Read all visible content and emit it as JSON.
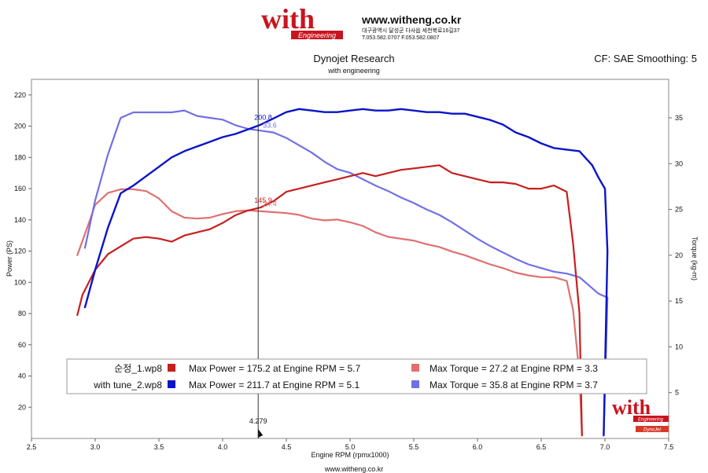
{
  "header": {
    "logo_text": "with",
    "logo_sub": "Engineering",
    "url": "www.witheng.co.kr",
    "address": "대구광역시 달성군 다사읍 세천북로16길37",
    "phone": "T.053.582.0707 F.053.582.0807"
  },
  "footer": {
    "url": "www.witheng.co.kr",
    "badge": "DynoJet"
  },
  "colors": {
    "power_stock": "#c81e1e",
    "power_tune": "#0a14c8",
    "torque_stock": "#e07070",
    "torque_tune": "#7070e6"
  },
  "chart_data": {
    "type": "line",
    "title": "Dynojet Research",
    "subtitle": "with engineering",
    "top_right": "CF: SAE Smoothing: 5",
    "xlabel": "Engine RPM (rpmx1000)",
    "ylabel": "Power (PS)",
    "y2label": "Torque (kg-m)",
    "xlim": [
      2.5,
      7.5
    ],
    "ylim": [
      0,
      230
    ],
    "y2lim": [
      0,
      39.2
    ],
    "x_ticks": [
      "2.5",
      "3.0",
      "3.5",
      "4.0",
      "4.5",
      "5.0",
      "5.5",
      "6.0",
      "6.5",
      "7.0",
      "7.5"
    ],
    "y_ticks": [
      "20",
      "40",
      "60",
      "80",
      "100",
      "120",
      "140",
      "160",
      "180",
      "200",
      "220"
    ],
    "y2_ticks": [
      "5",
      "10",
      "15",
      "20",
      "25",
      "30",
      "35"
    ],
    "cursor": {
      "x": 4.279,
      "label": "4.279"
    },
    "cursor_values": {
      "power_stock": "145.9",
      "torque_stock": "24.4",
      "power_tune": "200.8",
      "torque_tune": "33.6"
    },
    "legend": {
      "rows": [
        {
          "file": "순정_1.wp8",
          "power": "Max Power = 175.2 at Engine RPM = 5.7",
          "torque": "Max Torque = 27.2 at Engine RPM = 3.3"
        },
        {
          "file": "with tune_2.wp8",
          "power": "Max Power = 211.7 at Engine RPM = 5.1",
          "torque": "Max Torque = 35.8 at Engine RPM = 3.7"
        }
      ]
    },
    "series": [
      {
        "key": "power_stock",
        "axis": "left",
        "x": [
          2.86,
          2.9,
          3.0,
          3.1,
          3.2,
          3.3,
          3.4,
          3.5,
          3.6,
          3.7,
          3.8,
          3.9,
          4.0,
          4.1,
          4.2,
          4.3,
          4.4,
          4.5,
          4.6,
          4.7,
          4.8,
          4.9,
          5.0,
          5.1,
          5.2,
          5.3,
          5.4,
          5.5,
          5.6,
          5.7,
          5.8,
          5.9,
          6.0,
          6.1,
          6.2,
          6.3,
          6.4,
          6.5,
          6.6,
          6.7,
          6.75,
          6.8,
          6.82
        ],
        "y": [
          79,
          92,
          108,
          118,
          123,
          128,
          129,
          128,
          126,
          130,
          132,
          134,
          138,
          143,
          146,
          148,
          152,
          158,
          160,
          162,
          164,
          166,
          168,
          170,
          168,
          170,
          172,
          173,
          174,
          175,
          170,
          168,
          166,
          164,
          164,
          163,
          160,
          160,
          162,
          158,
          125,
          80,
          2
        ]
      },
      {
        "key": "power_tune",
        "axis": "left",
        "x": [
          2.92,
          3.0,
          3.1,
          3.2,
          3.3,
          3.4,
          3.5,
          3.6,
          3.7,
          3.8,
          3.9,
          4.0,
          4.1,
          4.2,
          4.3,
          4.4,
          4.5,
          4.6,
          4.7,
          4.8,
          4.9,
          5.0,
          5.1,
          5.2,
          5.3,
          5.4,
          5.5,
          5.6,
          5.7,
          5.8,
          5.9,
          6.0,
          6.1,
          6.2,
          6.3,
          6.4,
          6.5,
          6.6,
          6.7,
          6.8,
          6.9,
          6.95,
          7.0,
          7.02,
          6.99
        ],
        "y": [
          84,
          108,
          135,
          157,
          162,
          168,
          174,
          180,
          184,
          187,
          190,
          193,
          195,
          198,
          201,
          205,
          209,
          211,
          210,
          209,
          209,
          210,
          211,
          210,
          210,
          211,
          210,
          209,
          209,
          208,
          208,
          206,
          204,
          201,
          196,
          193,
          189,
          186,
          185,
          184,
          175,
          167,
          160,
          120,
          2
        ]
      },
      {
        "key": "torque_stock",
        "axis": "right",
        "x": [
          2.86,
          2.95,
          3.0,
          3.1,
          3.2,
          3.3,
          3.4,
          3.5,
          3.6,
          3.7,
          3.8,
          3.9,
          4.0,
          4.1,
          4.2,
          4.3,
          4.4,
          4.5,
          4.6,
          4.7,
          4.8,
          4.9,
          5.0,
          5.1,
          5.2,
          5.3,
          5.4,
          5.5,
          5.6,
          5.7,
          5.8,
          5.9,
          6.0,
          6.1,
          6.2,
          6.3,
          6.4,
          6.5,
          6.6,
          6.7,
          6.75,
          6.8,
          6.82
        ],
        "y": [
          20.0,
          23.5,
          25.5,
          26.8,
          27.2,
          27.2,
          27.0,
          26.2,
          24.8,
          24.1,
          24.0,
          24.1,
          24.5,
          24.8,
          24.9,
          24.8,
          24.7,
          24.6,
          24.4,
          24.0,
          23.8,
          23.9,
          23.6,
          23.2,
          22.5,
          22.0,
          21.8,
          21.6,
          21.2,
          20.9,
          20.4,
          20.0,
          19.5,
          19.0,
          18.6,
          18.1,
          17.8,
          17.6,
          17.6,
          17.2,
          14.0,
          7.0,
          0.3
        ]
      },
      {
        "key": "torque_tune",
        "axis": "right",
        "x": [
          2.92,
          3.0,
          3.1,
          3.2,
          3.3,
          3.4,
          3.5,
          3.6,
          3.7,
          3.8,
          3.9,
          4.0,
          4.1,
          4.2,
          4.3,
          4.4,
          4.5,
          4.6,
          4.7,
          4.8,
          4.9,
          5.0,
          5.1,
          5.2,
          5.3,
          5.4,
          5.5,
          5.6,
          5.7,
          5.8,
          5.9,
          6.0,
          6.1,
          6.2,
          6.3,
          6.4,
          6.5,
          6.6,
          6.7,
          6.8,
          6.9,
          6.95,
          7.0,
          7.02,
          6.99
        ],
        "y": [
          20.8,
          26.0,
          31.0,
          35.0,
          35.6,
          35.6,
          35.6,
          35.6,
          35.8,
          35.2,
          35.0,
          34.8,
          34.2,
          33.8,
          33.6,
          33.4,
          32.8,
          32.0,
          31.2,
          30.2,
          29.4,
          29.0,
          28.3,
          27.6,
          27.0,
          26.3,
          25.7,
          25.0,
          24.4,
          23.6,
          22.7,
          21.8,
          21.0,
          20.3,
          19.6,
          19.0,
          18.6,
          18.2,
          18.0,
          17.6,
          16.4,
          15.8,
          15.5,
          15.4,
          0.3
        ]
      }
    ]
  }
}
